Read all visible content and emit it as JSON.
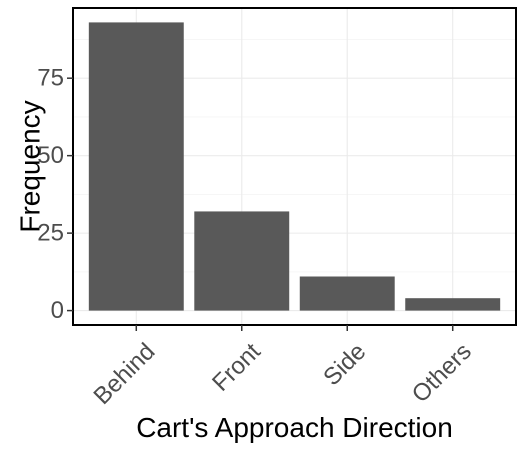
{
  "chart_data": {
    "type": "bar",
    "categories": [
      "Behind",
      "Front",
      "Side",
      "Others"
    ],
    "values": [
      93,
      32,
      11,
      4
    ],
    "title": "",
    "xlabel": "Cart's Approach Direction",
    "ylabel": "Frequency",
    "ylim": [
      -4.65,
      97.65
    ],
    "yticks": [
      0,
      25,
      50,
      75
    ],
    "ytick_labels": [
      "0",
      "25",
      "50",
      "75"
    ],
    "grid": true,
    "legend": "none",
    "colors": {
      "bar": "#595959",
      "panel_border": "#000000",
      "grid": "#ebebeb",
      "tick_text": "#4d4d4d"
    }
  }
}
